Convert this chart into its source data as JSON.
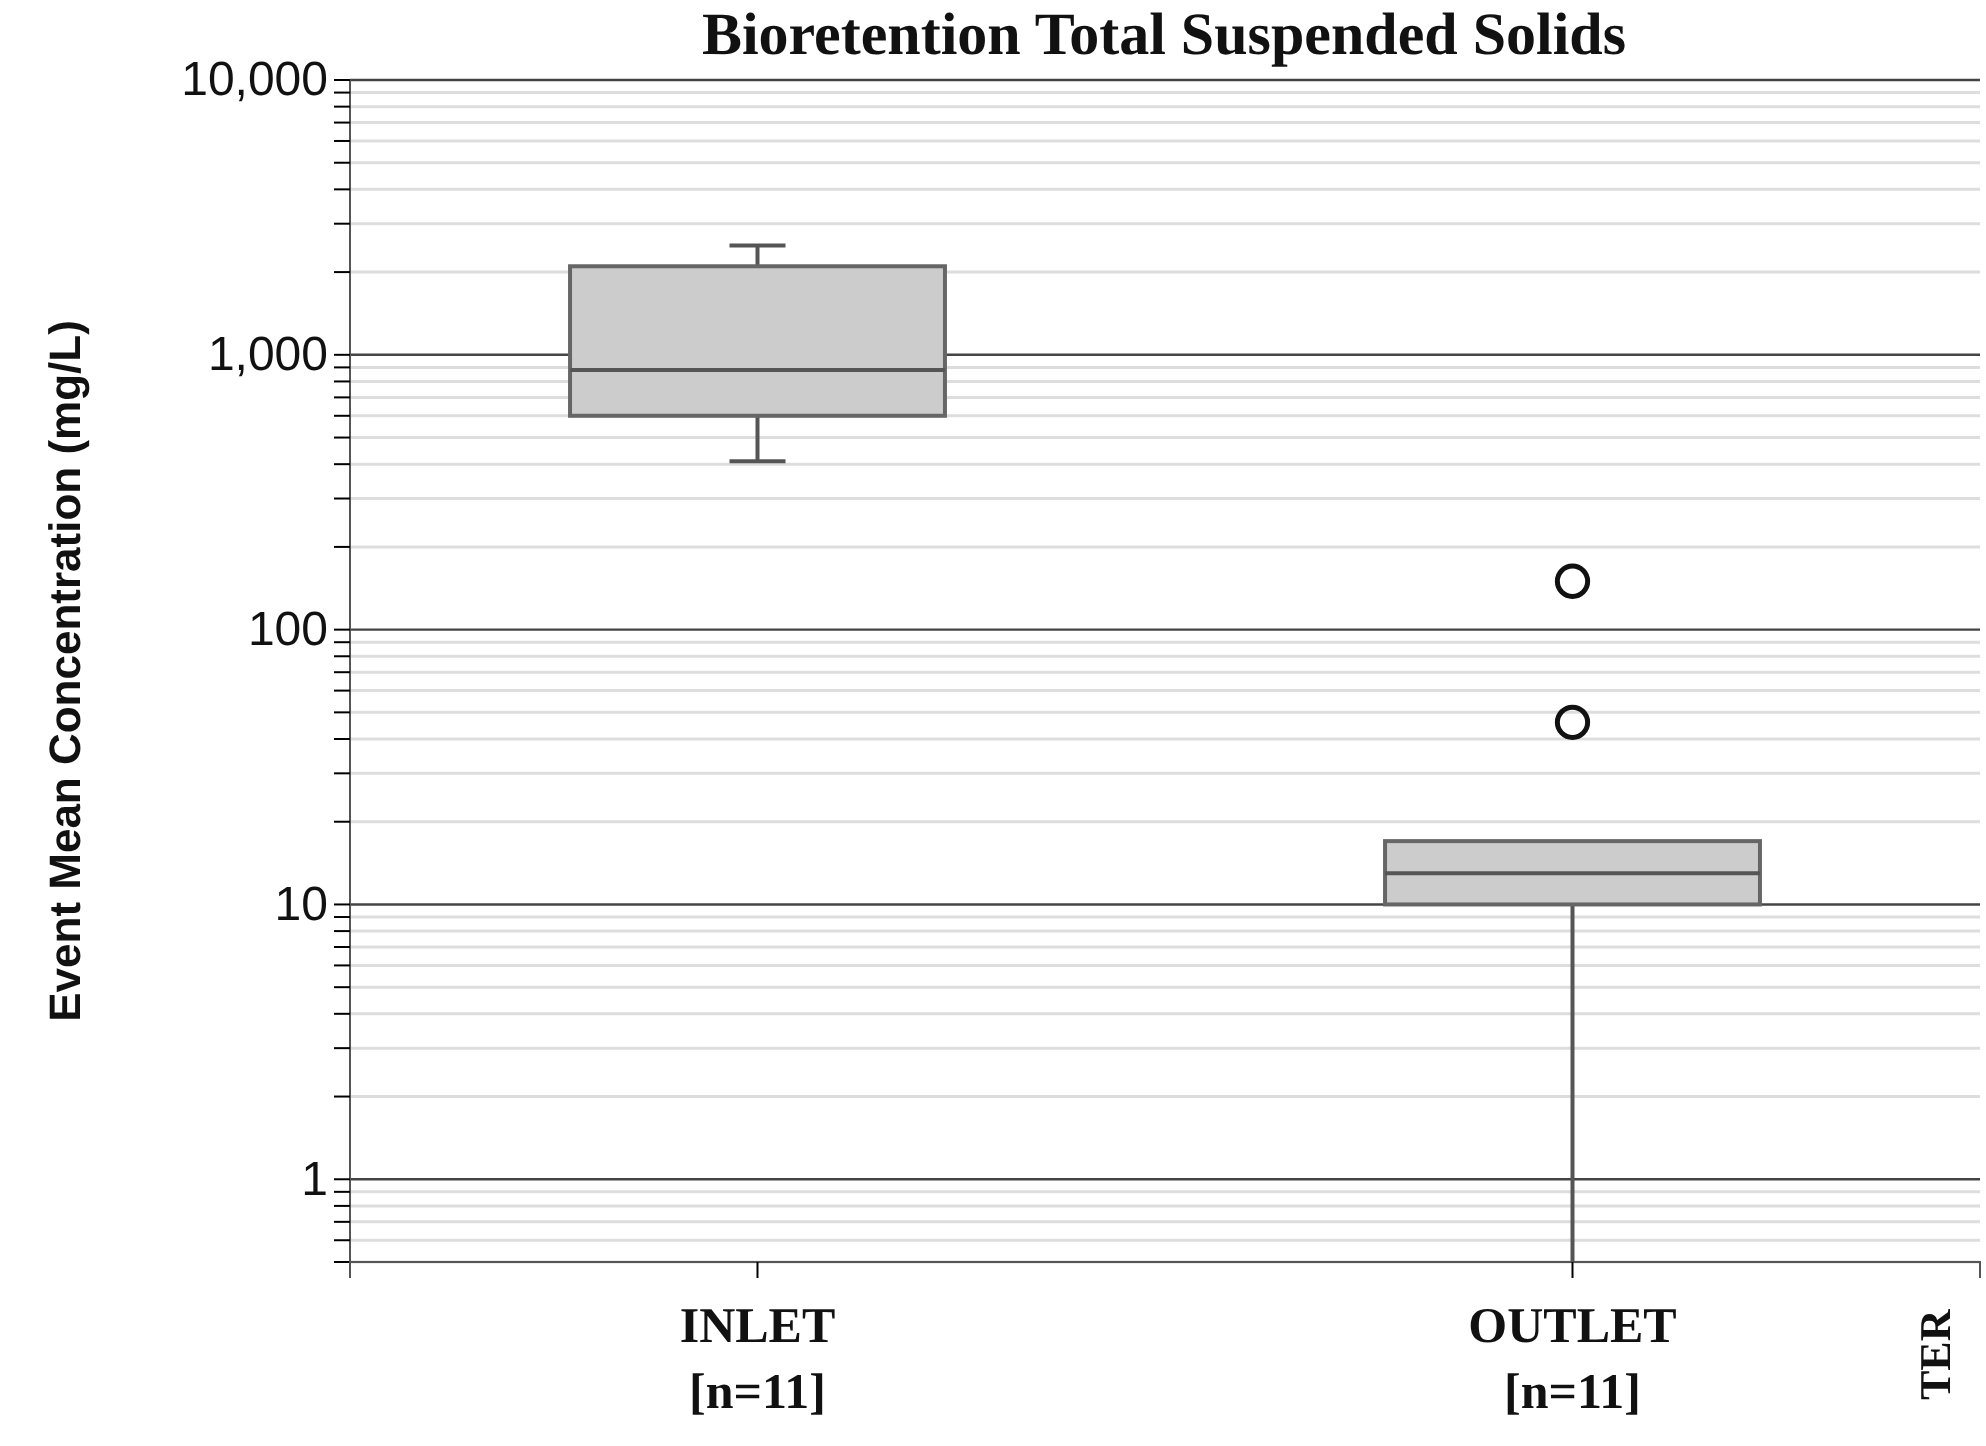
{
  "chart_data": {
    "type": "box",
    "title": "Bioretention Total Suspended Solids",
    "ylabel": "Event Mean Concentration (mg/L)",
    "categories": [
      "INLET\n[n=11]",
      "OUTLET\n[n=11]"
    ],
    "boxes": [
      {
        "low": 410,
        "q1": 600,
        "median": 880,
        "q3": 2100,
        "high": 2500
      },
      {
        "low": 0.5,
        "q1": 10,
        "median": 13,
        "q3": 17,
        "high": 17,
        "outliers": [
          46,
          150
        ]
      }
    ],
    "color": "#cccccc",
    "log": true,
    "ylim": [
      0.5,
      10000
    ],
    "yticks": [
      {
        "value": 0.5,
        "label": null
      },
      {
        "value": 0.6,
        "label": null
      },
      {
        "value": 0.7,
        "label": null
      },
      {
        "value": 0.8,
        "label": null
      },
      {
        "value": 0.9,
        "label": null
      },
      1,
      {
        "value": 2,
        "label": null
      },
      {
        "value": 3,
        "label": null
      },
      {
        "value": 4,
        "label": null
      },
      {
        "value": 5,
        "label": null
      },
      {
        "value": 6,
        "label": null
      },
      {
        "value": 7,
        "label": null
      },
      {
        "value": 8,
        "label": null
      },
      {
        "value": 9,
        "label": null
      },
      10,
      {
        "value": 20,
        "label": null
      },
      {
        "value": 30,
        "label": null
      },
      {
        "value": 40,
        "label": null
      },
      {
        "value": 50,
        "label": null
      },
      {
        "value": 60,
        "label": null
      },
      {
        "value": 70,
        "label": null
      },
      {
        "value": 80,
        "label": null
      },
      {
        "value": 90,
        "label": null
      },
      100,
      {
        "value": 200,
        "label": null
      },
      {
        "value": 300,
        "label": null
      },
      {
        "value": 400,
        "label": null
      },
      {
        "value": 500,
        "label": null
      },
      {
        "value": 600,
        "label": null
      },
      {
        "value": 700,
        "label": null
      },
      {
        "value": 800,
        "label": null
      },
      {
        "value": 900,
        "label": null
      },
      {
        "value": 1000,
        "label": "1,000"
      },
      {
        "value": 2000,
        "label": null
      },
      {
        "value": 3000,
        "label": null
      },
      {
        "value": 4000,
        "label": null
      },
      {
        "value": 5000,
        "label": null
      },
      {
        "value": 6000,
        "label": null
      },
      {
        "value": 7000,
        "label": null
      },
      {
        "value": 8000,
        "label": null
      },
      {
        "value": 9000,
        "label": null
      },
      {
        "value": 10000,
        "label": "10,000"
      }
    ],
    "grid": true,
    "marker": "circle",
    "annotations": [
      "TER"
    ]
  }
}
